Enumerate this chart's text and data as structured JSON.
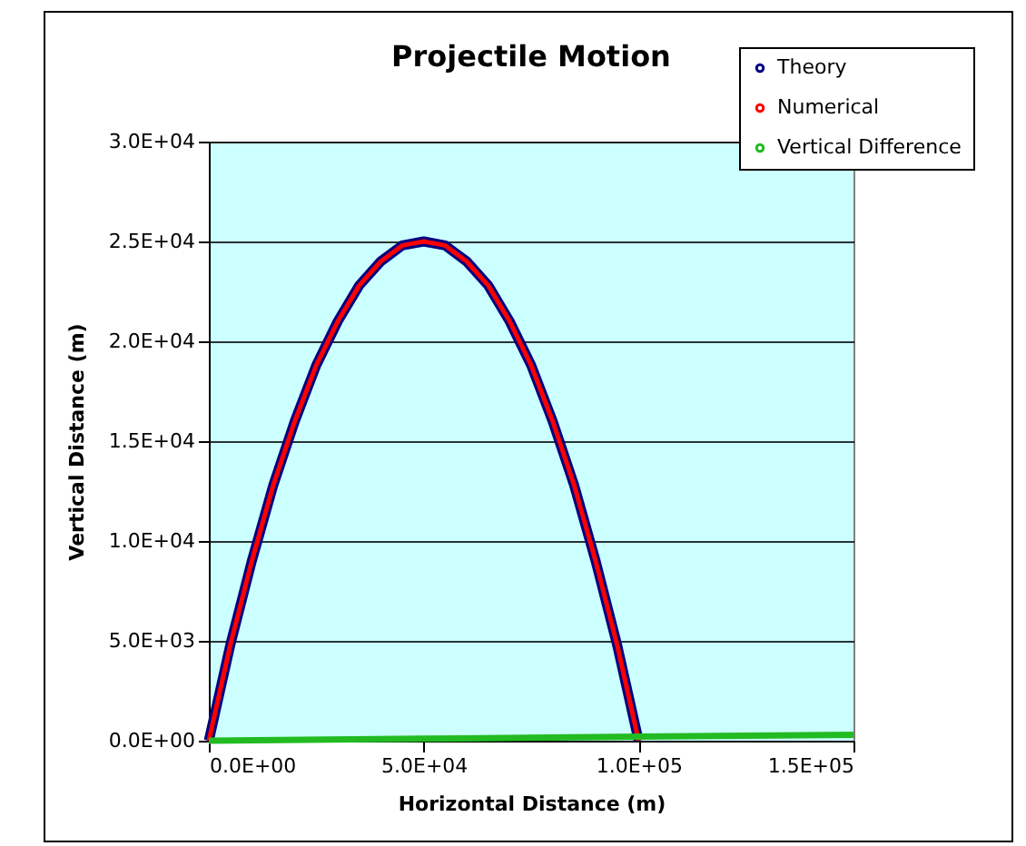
{
  "chart_data": {
    "type": "line",
    "title": "Projectile Motion",
    "xlabel": "Horizontal Distance (m)",
    "ylabel": "Vertical Distance (m)",
    "x": [
      0,
      5000,
      10000,
      15000,
      20000,
      25000,
      30000,
      35000,
      40000,
      45000,
      50000,
      55000,
      60000,
      65000,
      70000,
      75000,
      80000,
      85000,
      90000,
      95000,
      100000
    ],
    "series": [
      {
        "name": "Theory",
        "color": "#000080",
        "values": [
          0,
          4800,
          9000,
          12800,
          16000,
          18800,
          21000,
          22800,
          24000,
          24800,
          25000,
          24800,
          24000,
          22800,
          21000,
          18800,
          16000,
          12800,
          9000,
          4800,
          0
        ]
      },
      {
        "name": "Numerical",
        "color": "#ff0000",
        "values": [
          0,
          4800,
          9000,
          12800,
          16000,
          18800,
          21000,
          22800,
          24000,
          24800,
          25000,
          24800,
          24000,
          22800,
          21000,
          18800,
          16000,
          12800,
          9000,
          4800,
          0
        ]
      },
      {
        "name": "Vertical Difference",
        "color": "#22bb22",
        "x": [
          0,
          50000,
          100000,
          150000
        ],
        "values": [
          0,
          100,
          200,
          300
        ]
      }
    ],
    "xlim": [
      0,
      150000
    ],
    "ylim": [
      0,
      30000
    ],
    "xticks": [
      {
        "value": 0,
        "label": "0.0E+00"
      },
      {
        "value": 50000,
        "label": "5.0E+04"
      },
      {
        "value": 100000,
        "label": "1.0E+05"
      },
      {
        "value": 150000,
        "label": "1.5E+05"
      }
    ],
    "yticks": [
      {
        "value": 0,
        "label": "0.0E+00"
      },
      {
        "value": 5000,
        "label": "5.0E+03"
      },
      {
        "value": 10000,
        "label": "1.0E+04"
      },
      {
        "value": 15000,
        "label": "1.5E+04"
      },
      {
        "value": 20000,
        "label": "2.0E+04"
      },
      {
        "value": 25000,
        "label": "2.5E+04"
      },
      {
        "value": 30000,
        "label": "3.0E+04"
      }
    ],
    "grid": "y",
    "legend": "top right",
    "marker": "none",
    "line_style": "solid"
  }
}
